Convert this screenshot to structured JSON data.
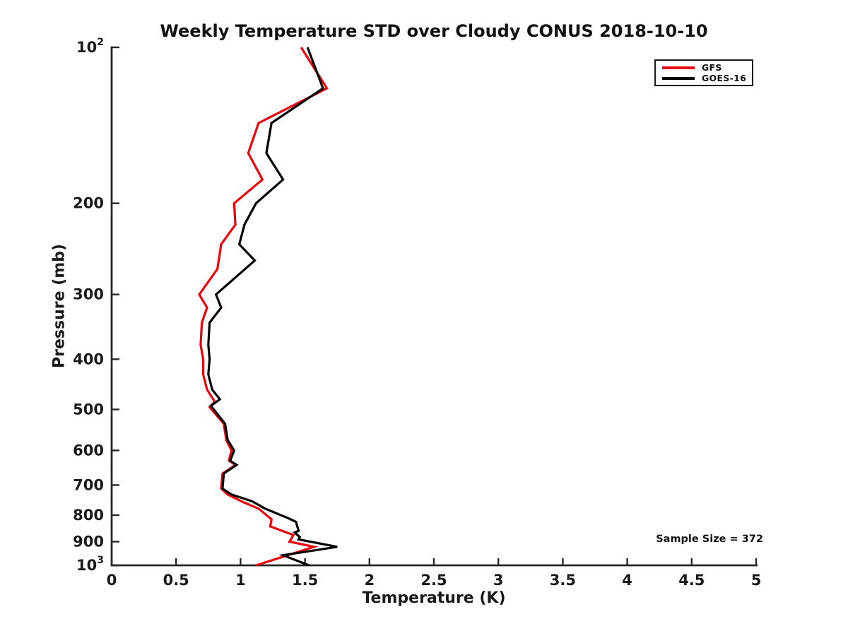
{
  "figure": {
    "background": "#ffffff",
    "text_color": "#1a1a1a",
    "axis_color": "#262626"
  },
  "chart_data": {
    "type": "line",
    "title": "Weekly Temperature STD over Cloudy CONUS 2018-10-10",
    "xlabel": "Temperature (K)",
    "ylabel": "Pressure (mb)",
    "xlim": [
      0,
      5
    ],
    "xticks": [
      0,
      0.5,
      1,
      1.5,
      2,
      2.5,
      3,
      3.5,
      4,
      4.5,
      5
    ],
    "xtick_labels": [
      "0",
      "0.5",
      "1",
      "1.5",
      "2",
      "2.5",
      "3",
      "3.5",
      "4",
      "4.5",
      "5"
    ],
    "yscale": "log",
    "ydirection": "increasing-downward",
    "ylim": [
      100,
      1000
    ],
    "yticks": [
      100,
      200,
      300,
      400,
      500,
      600,
      700,
      800,
      900,
      1000
    ],
    "ytick_labels": [
      "10^2",
      "200",
      "300",
      "400",
      "500",
      "600",
      "700",
      "800",
      "900",
      "10^3"
    ],
    "grid": false,
    "annotation": "Sample Size = 372",
    "legend": {
      "position": "upper right",
      "entries": [
        {
          "label": "GFS",
          "color": "#e8000b"
        },
        {
          "label": "GOES-16",
          "color": "#000000"
        }
      ]
    },
    "series": [
      {
        "name": "GFS",
        "color": "#e8000b",
        "points_format": "[pressure_mb, temperature_std_K]",
        "points": [
          [
            100,
            1.47
          ],
          [
            120,
            1.67
          ],
          [
            140,
            1.14
          ],
          [
            160,
            1.06
          ],
          [
            180,
            1.17
          ],
          [
            200,
            0.95
          ],
          [
            220,
            0.96
          ],
          [
            240,
            0.85
          ],
          [
            268,
            0.82
          ],
          [
            300,
            0.68
          ],
          [
            318,
            0.74
          ],
          [
            340,
            0.7
          ],
          [
            375,
            0.69
          ],
          [
            400,
            0.71
          ],
          [
            428,
            0.71
          ],
          [
            458,
            0.74
          ],
          [
            483,
            0.8
          ],
          [
            495,
            0.76
          ],
          [
            533,
            0.87
          ],
          [
            573,
            0.89
          ],
          [
            600,
            0.93
          ],
          [
            628,
            0.91
          ],
          [
            640,
            0.96
          ],
          [
            665,
            0.86
          ],
          [
            711,
            0.85
          ],
          [
            730,
            0.9
          ],
          [
            755,
            1.02
          ],
          [
            777,
            1.14
          ],
          [
            815,
            1.24
          ],
          [
            841,
            1.23
          ],
          [
            874,
            1.41
          ],
          [
            900,
            1.38
          ],
          [
            921,
            1.57
          ],
          [
            1000,
            1.12
          ]
        ]
      },
      {
        "name": "GOES-16",
        "color": "#000000",
        "points_format": "[pressure_mb, temperature_std_K]",
        "points": [
          [
            100,
            1.52
          ],
          [
            120,
            1.64
          ],
          [
            140,
            1.24
          ],
          [
            160,
            1.2
          ],
          [
            180,
            1.33
          ],
          [
            200,
            1.12
          ],
          [
            220,
            1.03
          ],
          [
            240,
            0.99
          ],
          [
            258,
            1.11
          ],
          [
            300,
            0.81
          ],
          [
            318,
            0.85
          ],
          [
            340,
            0.76
          ],
          [
            375,
            0.75
          ],
          [
            400,
            0.76
          ],
          [
            428,
            0.75
          ],
          [
            458,
            0.78
          ],
          [
            478,
            0.84
          ],
          [
            492,
            0.77
          ],
          [
            533,
            0.88
          ],
          [
            573,
            0.9
          ],
          [
            600,
            0.95
          ],
          [
            628,
            0.92
          ],
          [
            640,
            0.97
          ],
          [
            665,
            0.87
          ],
          [
            711,
            0.86
          ],
          [
            730,
            0.93
          ],
          [
            752,
            1.09
          ],
          [
            777,
            1.19
          ],
          [
            811,
            1.37
          ],
          [
            824,
            1.43
          ],
          [
            858,
            1.45
          ],
          [
            864,
            1.42
          ],
          [
            882,
            1.46
          ],
          [
            891,
            1.45
          ],
          [
            921,
            1.75
          ],
          [
            956,
            1.33
          ],
          [
            1000,
            1.53
          ]
        ]
      }
    ]
  }
}
